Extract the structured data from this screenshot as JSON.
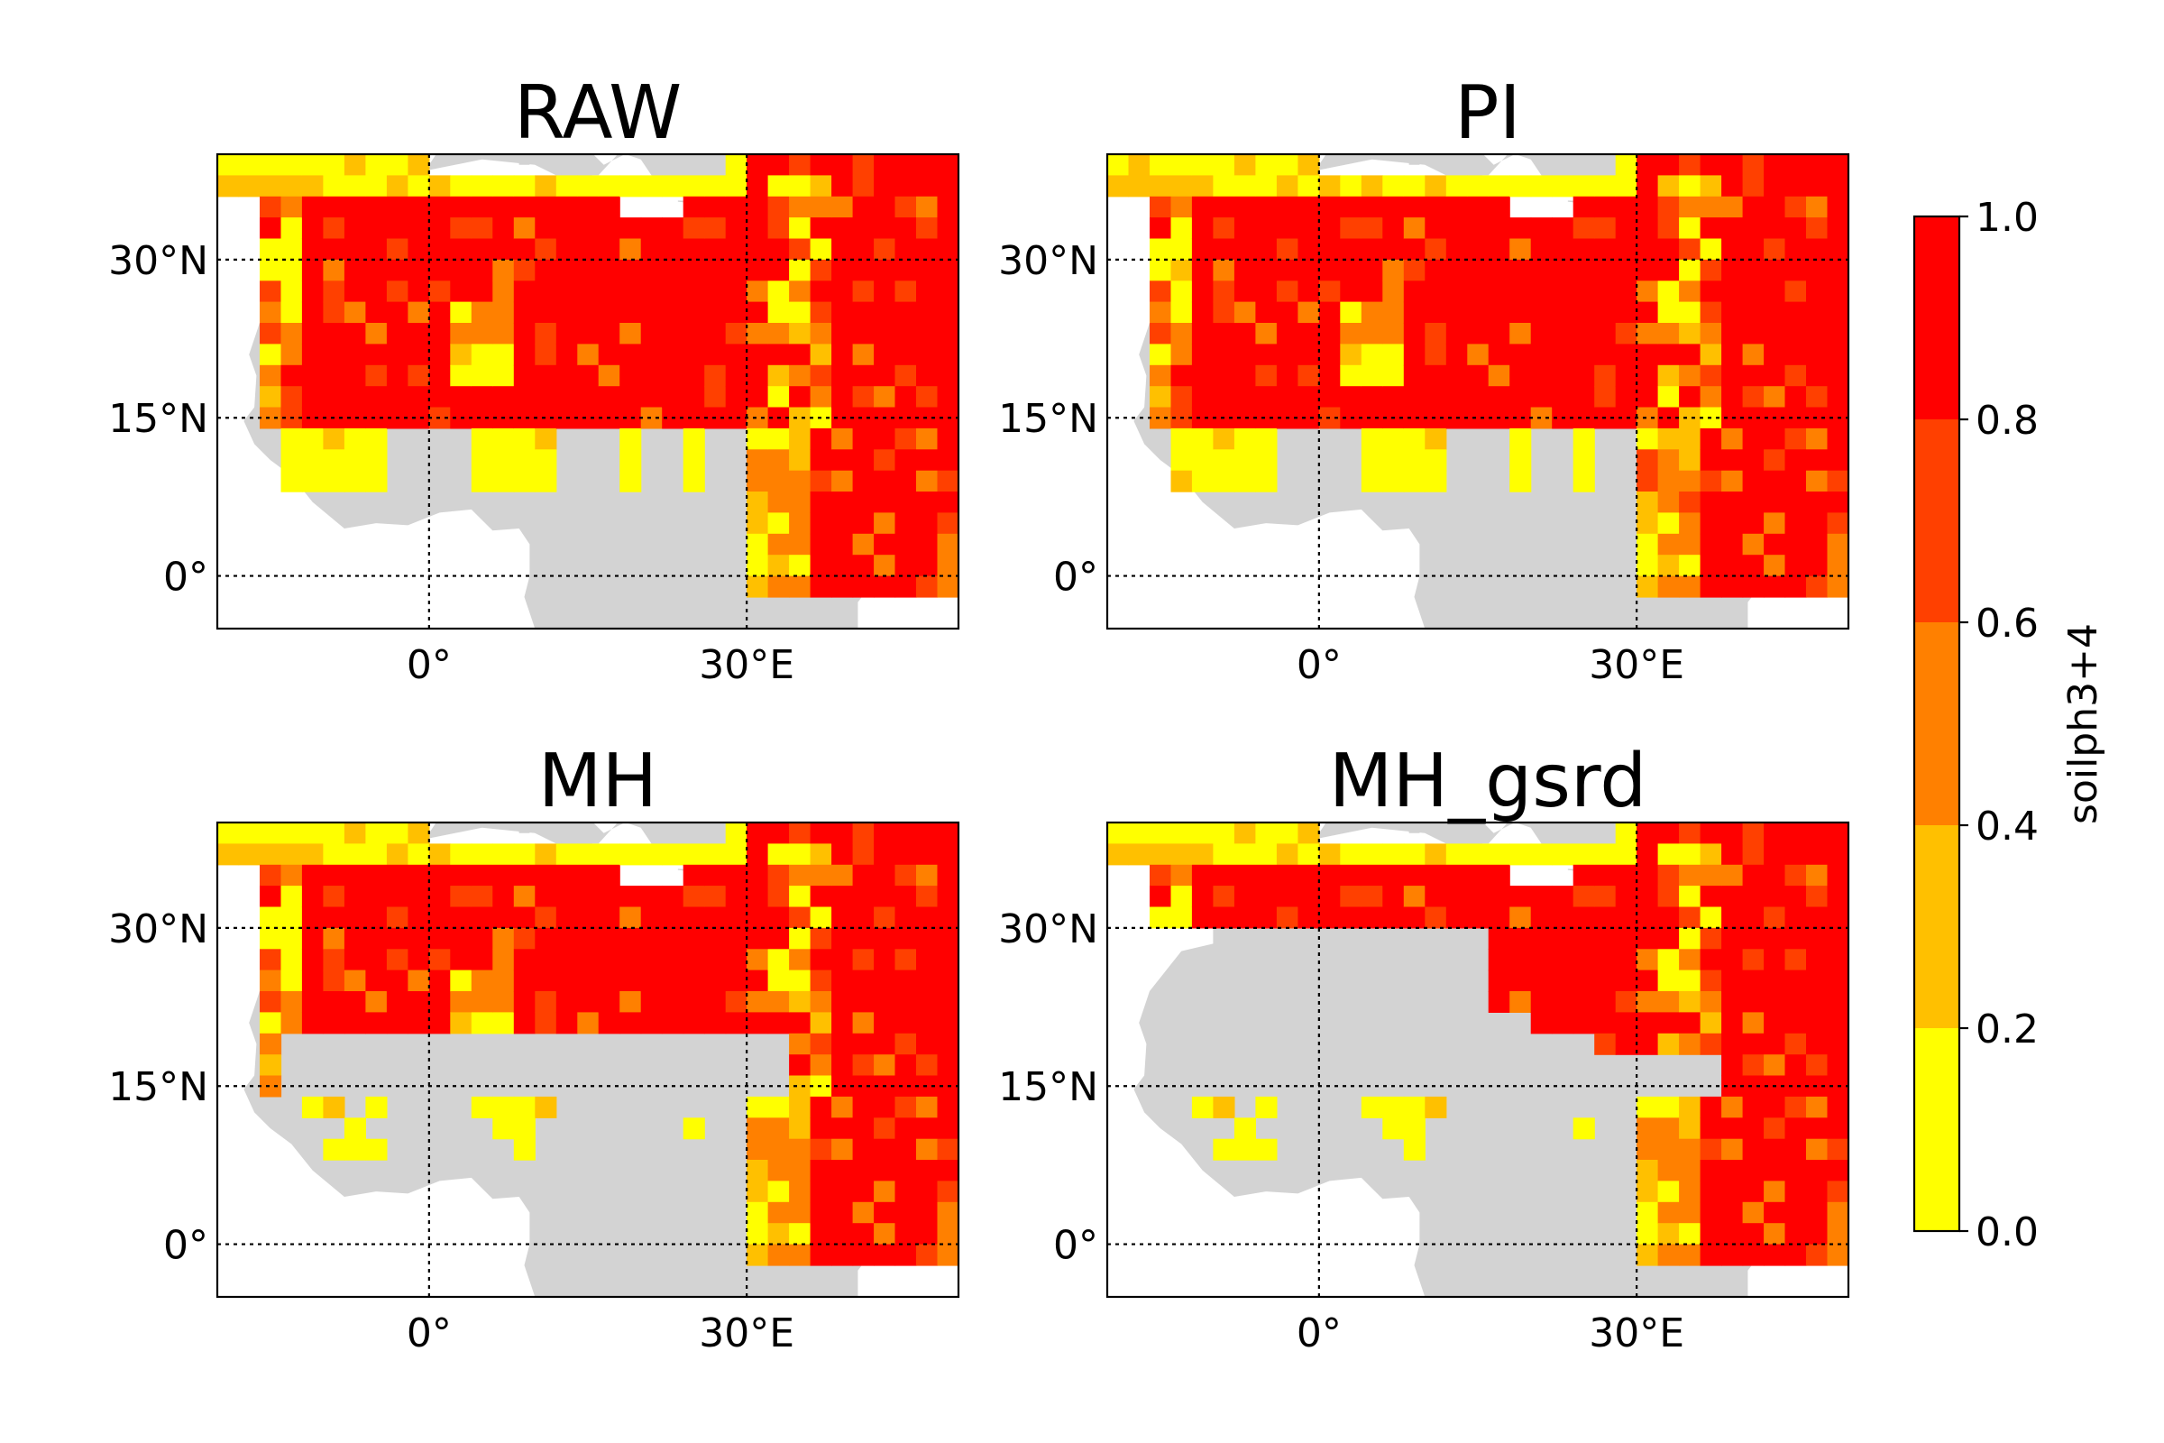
{
  "chart_data": {
    "type": "heatmap",
    "variable_label": "soilph3+4",
    "axes": {
      "lon_range": [
        -20,
        50
      ],
      "lat_range": [
        -5,
        40
      ],
      "lon_ticks": [
        {
          "value": 0,
          "label": "0°"
        },
        {
          "value": 30,
          "label": "30°E"
        }
      ],
      "lat_ticks": [
        {
          "value": 30,
          "label": "30°N"
        },
        {
          "value": 15,
          "label": "15°N"
        },
        {
          "value": 0,
          "label": "0°"
        }
      ],
      "grid": "dotted at tick positions"
    },
    "colorbar": {
      "range": [
        0,
        1
      ],
      "ticks": [
        "0.0",
        "0.2",
        "0.4",
        "0.6",
        "0.8",
        "1.0"
      ],
      "bins": [
        {
          "from": 0.0,
          "to": 0.2,
          "color": "#ffff00"
        },
        {
          "from": 0.2,
          "to": 0.4,
          "color": "#ffc000"
        },
        {
          "from": 0.4,
          "to": 0.6,
          "color": "#ff8000"
        },
        {
          "from": 0.6,
          "to": 0.8,
          "color": "#ff4000"
        },
        {
          "from": 0.8,
          "to": 1.0,
          "color": "#ff0000"
        }
      ]
    },
    "land_color": "#d3d3d3",
    "panels": [
      {
        "title": "RAW"
      },
      {
        "title": "PI"
      },
      {
        "title": "MH"
      },
      {
        "title": "MH_gsrd"
      }
    ]
  }
}
